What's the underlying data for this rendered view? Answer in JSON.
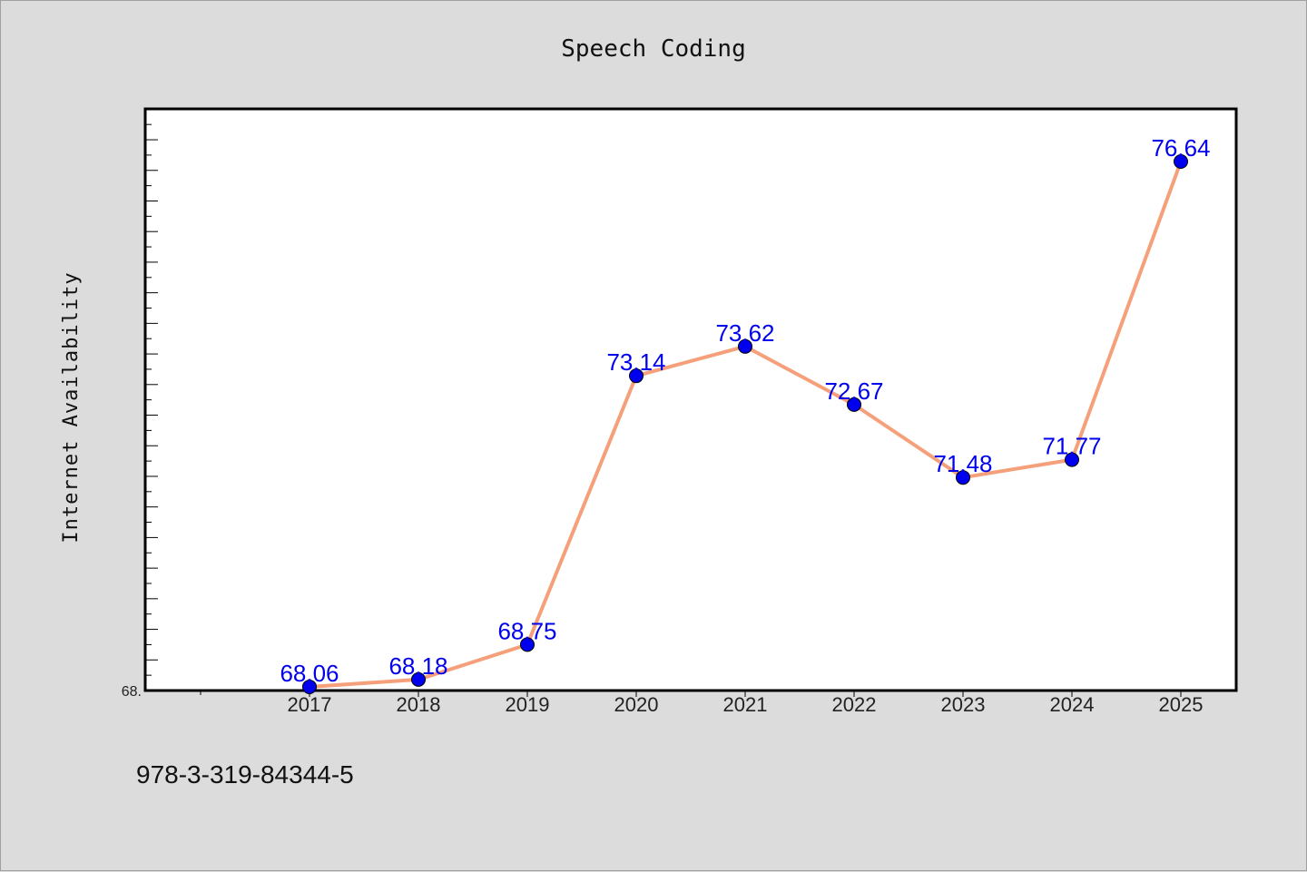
{
  "chart_data": {
    "type": "line",
    "title": "Speech Coding",
    "xlabel": "",
    "ylabel": "Internet Availability",
    "x": [
      "2017",
      "2018",
      "2019",
      "2020",
      "2021",
      "2022",
      "2023",
      "2024",
      "2025"
    ],
    "series": [
      {
        "values": [
          68.06,
          68.18,
          68.75,
          73.14,
          73.62,
          72.67,
          71.48,
          71.77,
          76.64
        ],
        "data_labels": [
          "68.06",
          "68.18",
          "68.75",
          "73.14",
          "73.62",
          "72.67",
          "71.48",
          "71.77",
          "76.64"
        ]
      }
    ],
    "ylim": [
      68.0,
      77.5
    ],
    "y_tick_labels": [
      "68."
    ],
    "grid": false,
    "legend": "none",
    "line_color": "#f5a07a",
    "marker_color": "#0000ee",
    "label_color": "#0000ee"
  },
  "footer": {
    "isbn": "978-3-319-84344-5"
  }
}
